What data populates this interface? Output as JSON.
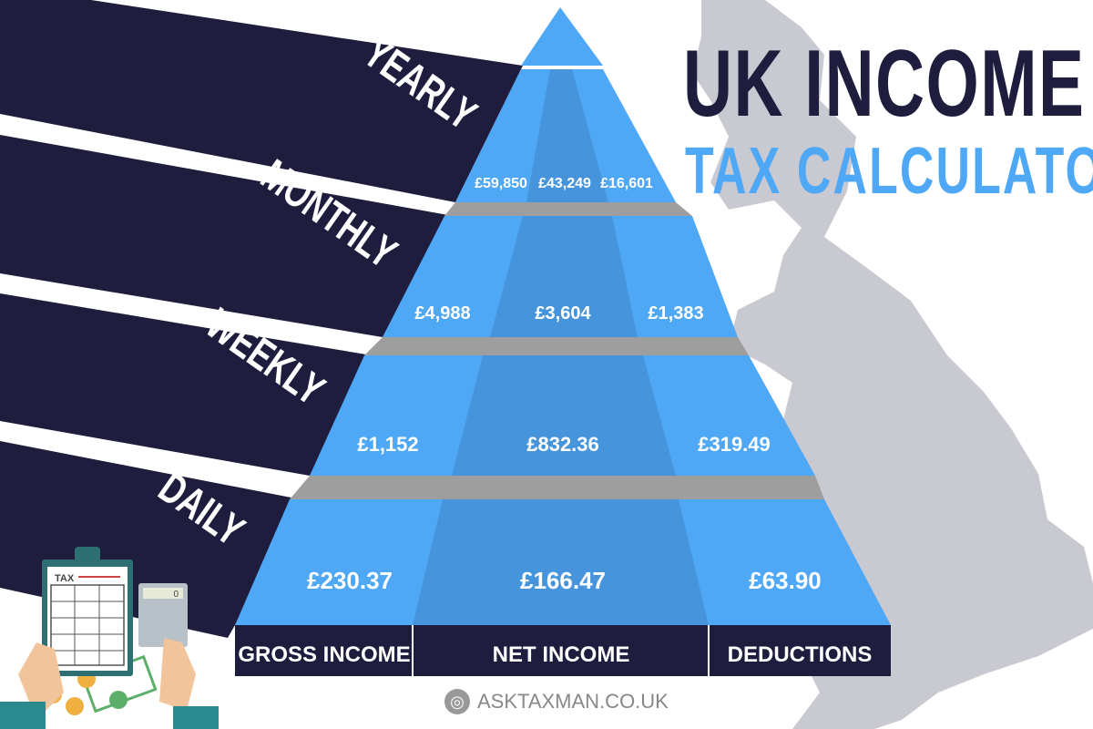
{
  "title": {
    "line1": "UK INCOME",
    "line2": "TAX CALCULATOR"
  },
  "periods": [
    {
      "label": "YEARLY",
      "gross": "£59,850",
      "net": "£43,249",
      "deductions": "£16,601"
    },
    {
      "label": "MONTHLY",
      "gross": "£4,988",
      "net": "£3,604",
      "deductions": "£1,383"
    },
    {
      "label": "WEEKLY",
      "gross": "£1,152",
      "net": "£832.36",
      "deductions": "£319.49"
    },
    {
      "label": "DAILY",
      "gross": "£230.37",
      "net": "£166.47",
      "deductions": "£63.90"
    }
  ],
  "columns": {
    "gross": "GROSS INCOME",
    "net": "NET INCOME",
    "deductions": "DEDUCTIONS"
  },
  "illustration": {
    "clipboard_label": "TAX",
    "calculator_display": "0"
  },
  "footer": {
    "icon": "globe-icon",
    "site": "ASKTAXMAN.CO.UK"
  },
  "colors": {
    "navy": "#1f1d3d",
    "blue": "#4fa8f5",
    "blue_dark": "#4695dc",
    "grey": "#9e9e9e",
    "map": "#c9c9d1"
  }
}
